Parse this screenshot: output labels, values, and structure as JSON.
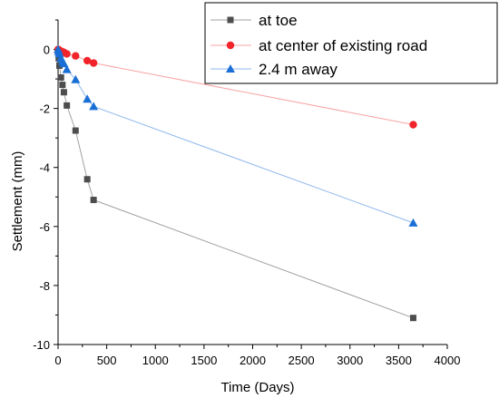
{
  "chart_data": {
    "type": "line",
    "xlabel": "Time (Days)",
    "ylabel": "Settlement (mm)",
    "xlim": [
      0,
      4000
    ],
    "ylim": [
      -10,
      1
    ],
    "xticks": [
      0,
      500,
      1000,
      1500,
      2000,
      2500,
      3000,
      3500,
      4000
    ],
    "yticks": [
      0,
      -2,
      -4,
      -6,
      -8,
      -10
    ],
    "grid": false,
    "legend_position": "top-right",
    "series": [
      {
        "name": "at toe",
        "color": "#4d4d4d",
        "line_color": "#a0a0a0",
        "marker": "square",
        "points": [
          [
            0,
            -0.05
          ],
          [
            7,
            -0.3
          ],
          [
            14,
            -0.55
          ],
          [
            30,
            -0.95
          ],
          [
            45,
            -1.2
          ],
          [
            60,
            -1.45
          ],
          [
            90,
            -1.9
          ],
          [
            180,
            -2.75
          ],
          [
            300,
            -4.4
          ],
          [
            365,
            -5.1
          ],
          [
            3650,
            -9.1
          ]
        ]
      },
      {
        "name": "at center of existing road",
        "color": "#f0242a",
        "line_color": "#f7a3a3",
        "marker": "circle",
        "points": [
          [
            0,
            0
          ],
          [
            7,
            -0.01
          ],
          [
            14,
            -0.03
          ],
          [
            30,
            -0.06
          ],
          [
            45,
            -0.08
          ],
          [
            60,
            -0.1
          ],
          [
            90,
            -0.15
          ],
          [
            180,
            -0.22
          ],
          [
            300,
            -0.38
          ],
          [
            365,
            -0.46
          ],
          [
            3650,
            -2.55
          ]
        ]
      },
      {
        "name": "2.4 m away",
        "color": "#1a6fd6",
        "line_color": "#8fb8ec",
        "marker": "triangle",
        "points": [
          [
            0,
            0
          ],
          [
            7,
            -0.08
          ],
          [
            14,
            -0.15
          ],
          [
            30,
            -0.3
          ],
          [
            45,
            -0.4
          ],
          [
            60,
            -0.48
          ],
          [
            90,
            -0.68
          ],
          [
            180,
            -1.02
          ],
          [
            300,
            -1.68
          ],
          [
            365,
            -1.93
          ],
          [
            3650,
            -5.88
          ]
        ]
      }
    ]
  }
}
